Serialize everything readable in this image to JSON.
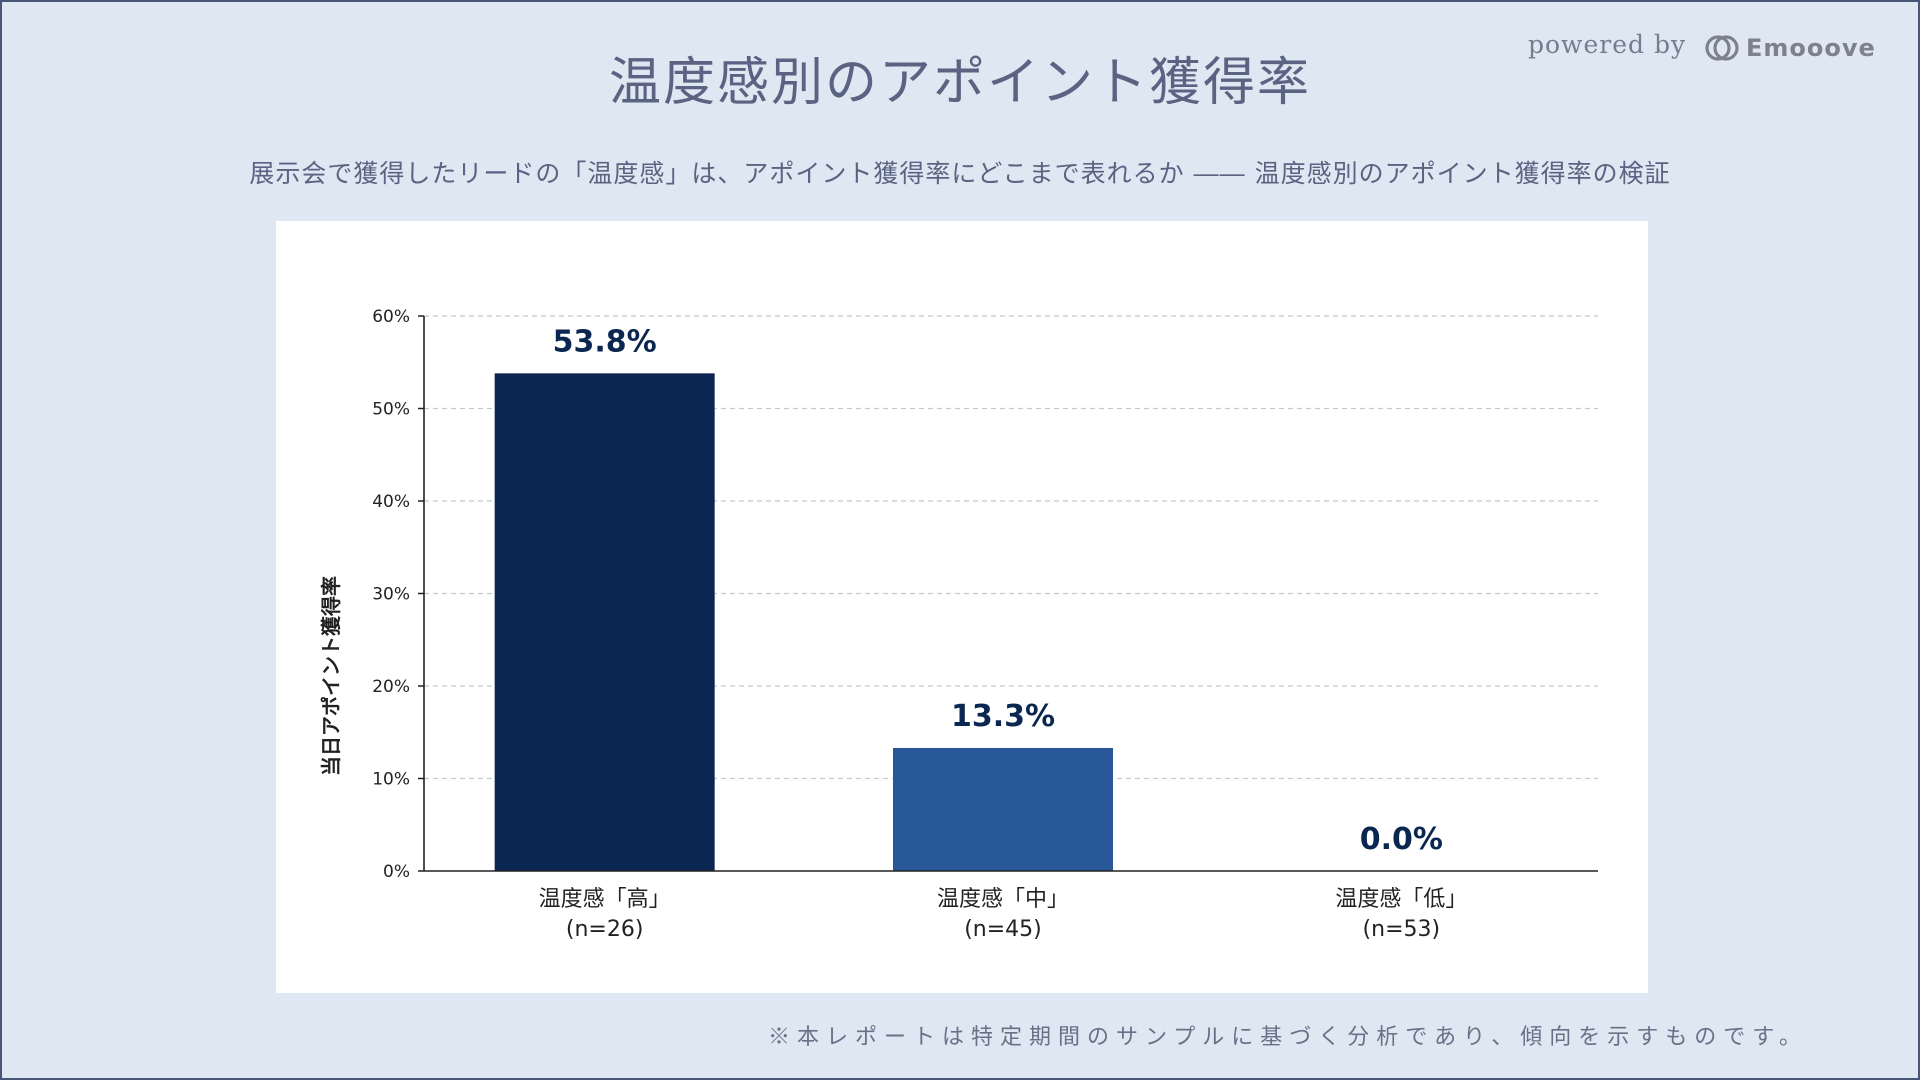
{
  "header": {
    "title": "温度感別のアポイント獲得率",
    "subtitle": "展示会で獲得したリードの「温度感」は、アポイント獲得率にどこまで表れるか ―― 温度感別のアポイント獲得率の検証",
    "powered_by": "powered by",
    "brand": "Emooove"
  },
  "footer": {
    "note": "※本レポートは特定期間のサンプルに基づく分析であり、傾向を示すものです。"
  },
  "colors": {
    "background": "#dfe7f2",
    "bar_high": "#0b2650",
    "bar_mid": "#28579a",
    "bar_low": "#28579a",
    "label": "#0b2650"
  },
  "chart_data": {
    "type": "bar",
    "title": "",
    "xlabel": "",
    "ylabel": "当日アポイント獲得率",
    "ylim": [
      0,
      60
    ],
    "yticks": [
      0,
      10,
      20,
      30,
      40,
      50,
      60
    ],
    "ytick_labels": [
      "0%",
      "10%",
      "20%",
      "30%",
      "40%",
      "50%",
      "60%"
    ],
    "grid": true,
    "categories": [
      {
        "name": "温度感「高」",
        "n": "(n=26)"
      },
      {
        "name": "温度感「中」",
        "n": "(n=45)"
      },
      {
        "name": "温度感「低」",
        "n": "(n=53)"
      }
    ],
    "values": [
      53.8,
      13.3,
      0.0
    ],
    "value_labels": [
      "53.8%",
      "13.3%",
      "0.0%"
    ]
  }
}
